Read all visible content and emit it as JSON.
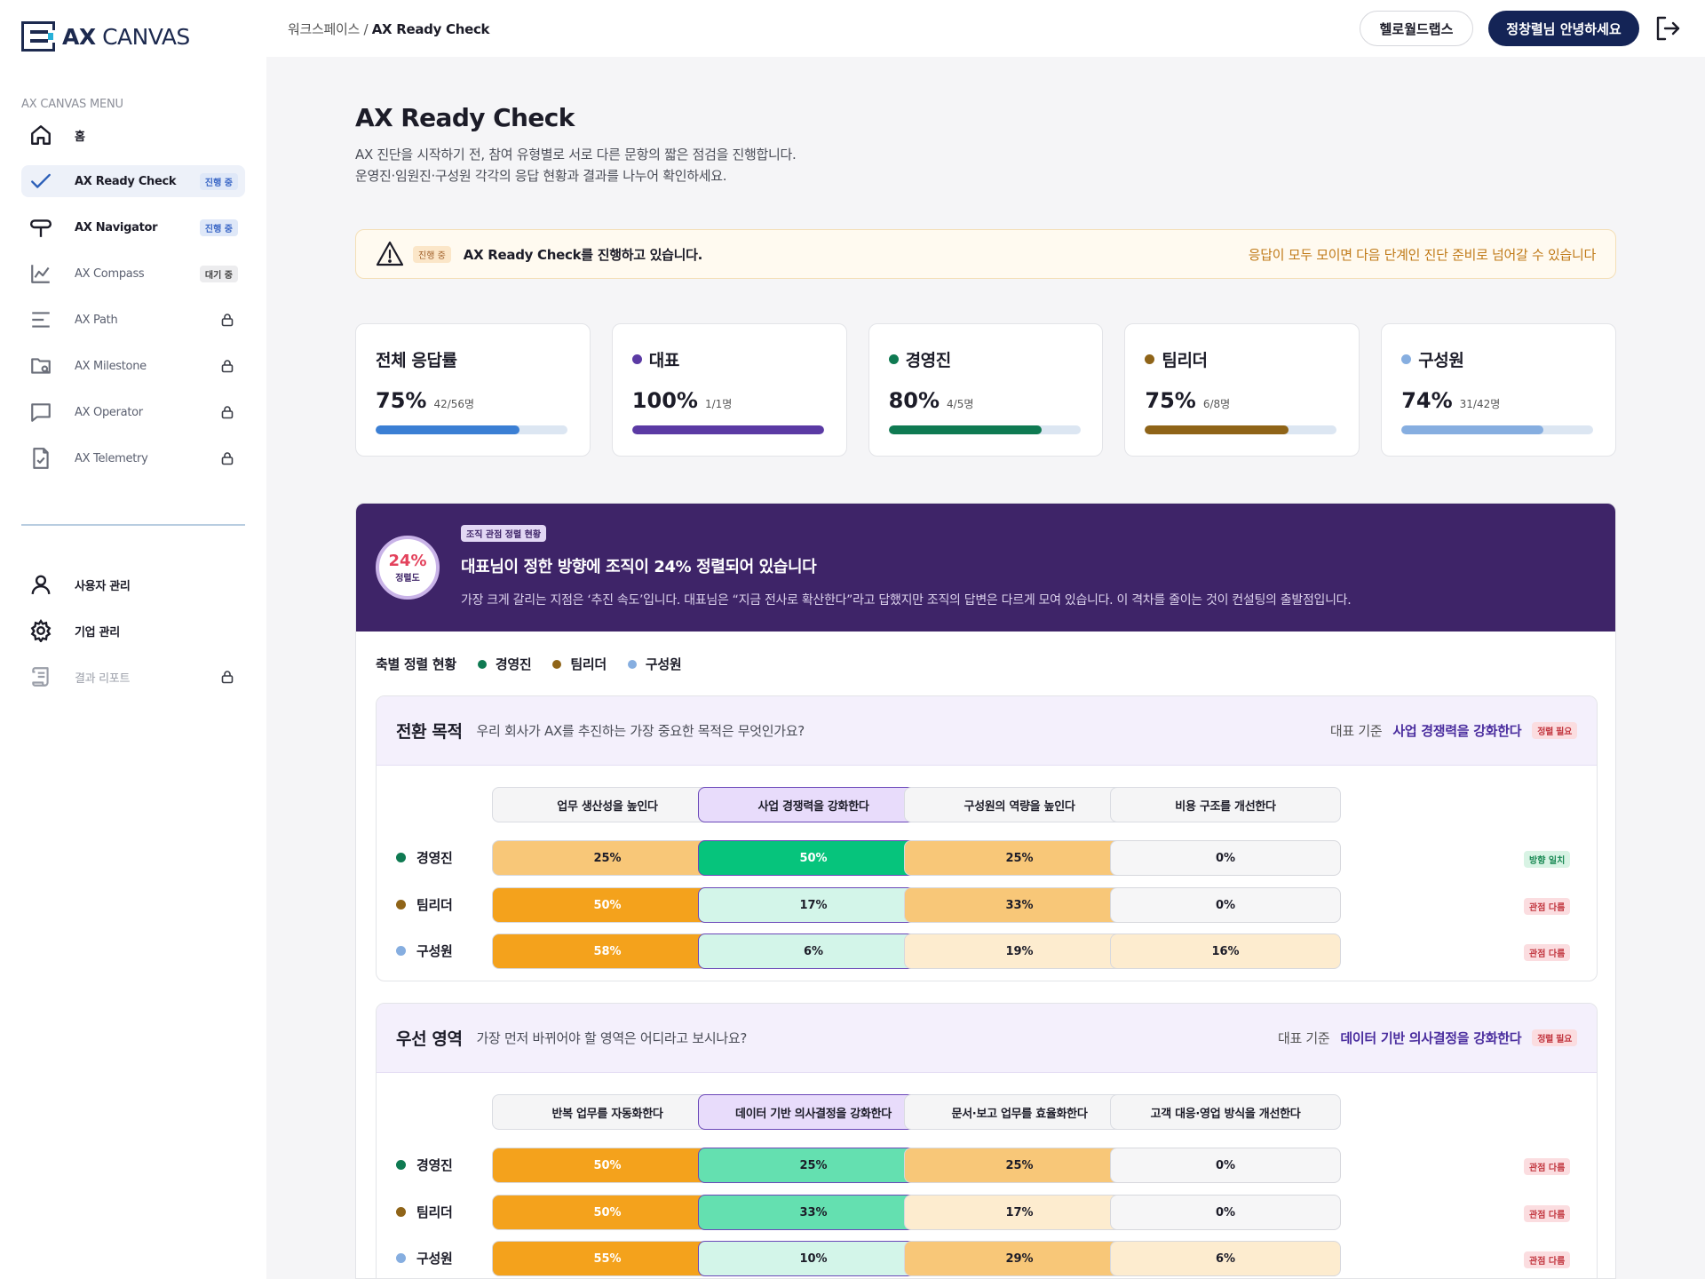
{
  "brand": {
    "logo_text": "AX CANVAS",
    "logo_bold": "AX",
    "logo_rest": " CANVAS"
  },
  "sidebar": {
    "caption": "AX CANVAS MENU",
    "items": [
      {
        "label": "홈",
        "icon": "home-icon",
        "badge": "",
        "locked": false
      },
      {
        "label": "AX Ready Check",
        "icon": "check-icon",
        "badge": "진행 중",
        "locked": false,
        "active": true
      },
      {
        "label": "AX Navigator",
        "icon": "signpost-icon",
        "badge": "진행 중",
        "locked": false
      },
      {
        "label": "AX Compass",
        "icon": "chart-line-icon",
        "badge": "대기 중",
        "locked": false
      },
      {
        "label": "AX Path",
        "icon": "menu-lines-icon",
        "badge": "",
        "locked": true
      },
      {
        "label": "AX Milestone",
        "icon": "folder-search-icon",
        "badge": "",
        "locked": true
      },
      {
        "label": "AX Operator",
        "icon": "chat-icon",
        "badge": "",
        "locked": true
      },
      {
        "label": "AX Telemetry",
        "icon": "file-check-icon",
        "badge": "",
        "locked": true
      }
    ],
    "admin_items": [
      {
        "label": "사용자 관리",
        "icon": "user-icon",
        "locked": false
      },
      {
        "label": "기업 관리",
        "icon": "gear-icon",
        "locked": false
      },
      {
        "label": "결과 리포트",
        "icon": "scroll-icon",
        "locked": true
      }
    ]
  },
  "topbar": {
    "breadcrumb_parent": "워크스페이스 / ",
    "breadcrumb_current": "AX Ready Check",
    "org_button": "헬로월드랩스",
    "user_button": "정창렬님 안녕하세요"
  },
  "page": {
    "title": "AX Ready Check",
    "desc_line1": "AX 진단을 시작하기 전, 참여 유형별로 서로 다른 문항의 짧은 점검을 진행합니다.",
    "desc_line2": "운영진·임원진·구성원 각각의 응답 현황과 결과를 나누어 확인하세요."
  },
  "alert": {
    "badge": "진행 중",
    "text": "AX Ready Check를 진행하고 있습니다.",
    "right_text": "응답이 모두 모이면 다음 단계인 진단 준비로 넘어갈 수 있습니다"
  },
  "stats": [
    {
      "title": "전체 응답률",
      "value": "75%",
      "sub": "42/56명",
      "percent": 75,
      "color": "#3b7fd4",
      "dot": ""
    },
    {
      "title": "대표",
      "value": "100%",
      "sub": "1/1명",
      "percent": 100,
      "color": "#5b3aa4",
      "dot": "#5b3aa4"
    },
    {
      "title": "경영진",
      "value": "80%",
      "sub": "4/5명",
      "percent": 80,
      "color": "#0f7a52",
      "dot": "#0f7a52"
    },
    {
      "title": "팀리더",
      "value": "75%",
      "sub": "6/8명",
      "percent": 75,
      "color": "#8f6418",
      "dot": "#8f6418"
    },
    {
      "title": "구성원",
      "value": "74%",
      "sub": "31/42명",
      "percent": 74,
      "color": "#86aee0",
      "dot": "#86aee0"
    }
  ],
  "alignment": {
    "ring_pct": "24%",
    "ring_caption": "정렬도",
    "tag": "조직 관점 정렬 현황",
    "headline": "대표님이 정한 방향에 조직이 24% 정렬되어 있습니다",
    "description": "가장 크게 갈리는 지점은 ‘추진 속도’입니다. 대표님은 “지금 전사로 확산한다”라고 답했지만 조직의 답변은 다르게 모여 있습니다. 이 격차를 줄이는 것이 컨설팅의 출발점입니다.",
    "legend_title": "축별 정렬 현황",
    "legend": [
      {
        "name": "경영진",
        "color": "#0f7a52"
      },
      {
        "name": "팀리더",
        "color": "#8f6418"
      },
      {
        "name": "구성원",
        "color": "#86aee0"
      }
    ]
  },
  "questions": [
    {
      "title": "전환 목적",
      "text": "우리 회사가 AX를 추진하는 가장 중요한 목적은 무엇인가요?",
      "ceo_label": "대표 기준",
      "ceo_answer": "사업 경쟁력을 강화한다",
      "status": "정렬 필요",
      "columns": [
        "업무 생산성을 높인다",
        "사업 경쟁력을 강화한다",
        "구성원의 역량을 높인다",
        "비용 구조를 개선한다"
      ],
      "selected_col": 1,
      "rows": [
        {
          "name": "경영진",
          "color": "#0f7a52",
          "values": [
            "25%",
            "50%",
            "25%",
            "0%"
          ],
          "status": "방향 일치",
          "status_type": "green"
        },
        {
          "name": "팀리더",
          "color": "#8f6418",
          "values": [
            "50%",
            "17%",
            "33%",
            "0%"
          ],
          "status": "관점 다름",
          "status_type": "red"
        },
        {
          "name": "구성원",
          "color": "#86aee0",
          "values": [
            "58%",
            "6%",
            "19%",
            "16%"
          ],
          "status": "관점 다름",
          "status_type": "red"
        }
      ]
    },
    {
      "title": "우선 영역",
      "text": "가장 먼저 바뀌어야 할 영역은 어디라고 보시나요?",
      "ceo_label": "대표 기준",
      "ceo_answer": "데이터 기반 의사결정을 강화한다",
      "status": "정렬 필요",
      "columns": [
        "반복 업무를 자동화한다",
        "데이터 기반 의사결정을 강화한다",
        "문서·보고 업무를 효율화한다",
        "고객 대응·영업 방식을 개선한다"
      ],
      "selected_col": 1,
      "rows": [
        {
          "name": "경영진",
          "color": "#0f7a52",
          "values": [
            "50%",
            "25%",
            "25%",
            "0%"
          ],
          "status": "관점 다름",
          "status_type": "red"
        },
        {
          "name": "팀리더",
          "color": "#8f6418",
          "values": [
            "50%",
            "33%",
            "17%",
            "0%"
          ],
          "status": "관점 다름",
          "status_type": "red"
        },
        {
          "name": "구성원",
          "color": "#86aee0",
          "values": [
            "55%",
            "10%",
            "29%",
            "6%"
          ],
          "status": "관점 다름",
          "status_type": "red"
        }
      ]
    }
  ]
}
